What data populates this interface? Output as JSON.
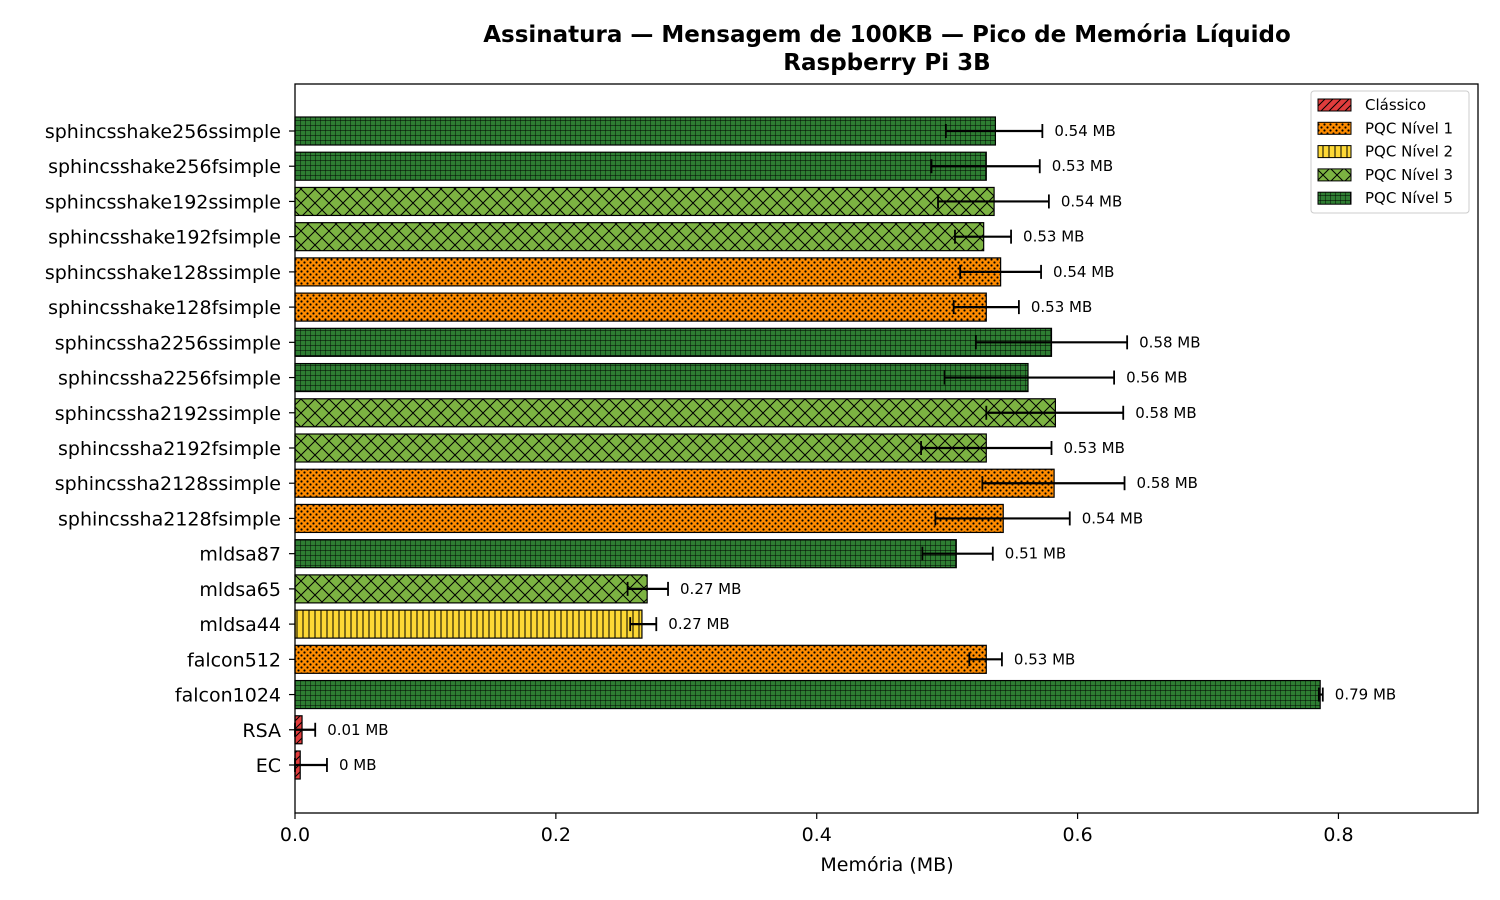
{
  "chart_data": {
    "type": "bar",
    "orientation": "horizontal",
    "title": "Assinatura — Mensagem de 100KB — Pico de Memória Líquido",
    "subtitle": "Raspberry Pi 3B",
    "xlabel": "Memória (MB)",
    "ylabel": "",
    "xlim": [
      0,
      0.907
    ],
    "xticks": [
      0.0,
      0.2,
      0.4,
      0.6,
      0.8
    ],
    "xtick_labels": [
      "0.0",
      "0.2",
      "0.4",
      "0.6",
      "0.8"
    ],
    "grid": false,
    "legend_position": "top-right",
    "legend": [
      {
        "key": "classico",
        "label": "Clássico",
        "color": "#e03c3c",
        "hatch": "diagonal"
      },
      {
        "key": "nivel1",
        "label": "PQC Nível 1",
        "color": "#ff8c00",
        "hatch": "dots"
      },
      {
        "key": "nivel2",
        "label": "PQC Nível 2",
        "color": "#fdd835",
        "hatch": "vertical"
      },
      {
        "key": "nivel3",
        "label": "PQC Nível 3",
        "color": "#7cb342",
        "hatch": "cross"
      },
      {
        "key": "nivel5",
        "label": "PQC Nível 5",
        "color": "#2e7d32",
        "hatch": "grid"
      }
    ],
    "bars": [
      {
        "category": "sphincsshake256ssimple",
        "value": 0.537,
        "err_low": 0.499,
        "err_high": 0.573,
        "label": "0.54 MB",
        "group": "nivel5"
      },
      {
        "category": "sphincsshake256fsimple",
        "value": 0.53,
        "err_low": 0.488,
        "err_high": 0.571,
        "label": "0.53 MB",
        "group": "nivel5"
      },
      {
        "category": "sphincsshake192ssimple",
        "value": 0.536,
        "err_low": 0.493,
        "err_high": 0.578,
        "label": "0.54 MB",
        "group": "nivel3"
      },
      {
        "category": "sphincsshake192fsimple",
        "value": 0.528,
        "err_low": 0.506,
        "err_high": 0.549,
        "label": "0.53 MB",
        "group": "nivel3"
      },
      {
        "category": "sphincsshake128ssimple",
        "value": 0.541,
        "err_low": 0.51,
        "err_high": 0.572,
        "label": "0.54 MB",
        "group": "nivel1"
      },
      {
        "category": "sphincsshake128fsimple",
        "value": 0.53,
        "err_low": 0.505,
        "err_high": 0.555,
        "label": "0.53 MB",
        "group": "nivel1"
      },
      {
        "category": "sphincssha2256ssimple",
        "value": 0.58,
        "err_low": 0.522,
        "err_high": 0.638,
        "label": "0.58 MB",
        "group": "nivel5"
      },
      {
        "category": "sphincssha2256fsimple",
        "value": 0.562,
        "err_low": 0.498,
        "err_high": 0.628,
        "label": "0.56 MB",
        "group": "nivel5"
      },
      {
        "category": "sphincssha2192ssimple",
        "value": 0.583,
        "err_low": 0.53,
        "err_high": 0.635,
        "label": "0.58 MB",
        "group": "nivel3"
      },
      {
        "category": "sphincssha2192fsimple",
        "value": 0.53,
        "err_low": 0.48,
        "err_high": 0.58,
        "label": "0.53 MB",
        "group": "nivel3"
      },
      {
        "category": "sphincssha2128ssimple",
        "value": 0.582,
        "err_low": 0.527,
        "err_high": 0.636,
        "label": "0.58 MB",
        "group": "nivel1"
      },
      {
        "category": "sphincssha2128fsimple",
        "value": 0.543,
        "err_low": 0.491,
        "err_high": 0.594,
        "label": "0.54 MB",
        "group": "nivel1"
      },
      {
        "category": "mldsa87",
        "value": 0.507,
        "err_low": 0.481,
        "err_high": 0.535,
        "label": "0.51 MB",
        "group": "nivel5"
      },
      {
        "category": "mldsa65",
        "value": 0.27,
        "err_low": 0.255,
        "err_high": 0.286,
        "label": "0.27 MB",
        "group": "nivel3"
      },
      {
        "category": "mldsa44",
        "value": 0.266,
        "err_low": 0.257,
        "err_high": 0.277,
        "label": "0.27 MB",
        "group": "nivel2"
      },
      {
        "category": "falcon512",
        "value": 0.53,
        "err_low": 0.517,
        "err_high": 0.542,
        "label": "0.53 MB",
        "group": "nivel1"
      },
      {
        "category": "falcon1024",
        "value": 0.786,
        "err_low": 0.785,
        "err_high": 0.788,
        "label": "0.79 MB",
        "group": "nivel5"
      },
      {
        "category": "RSA",
        "value": 0.0054,
        "err_low": 0.0,
        "err_high": 0.0155,
        "label": "0.01 MB",
        "group": "classico"
      },
      {
        "category": "EC",
        "value": 0.004,
        "err_low": 0.0,
        "err_high": 0.0245,
        "label": "0 MB",
        "group": "classico"
      }
    ]
  }
}
